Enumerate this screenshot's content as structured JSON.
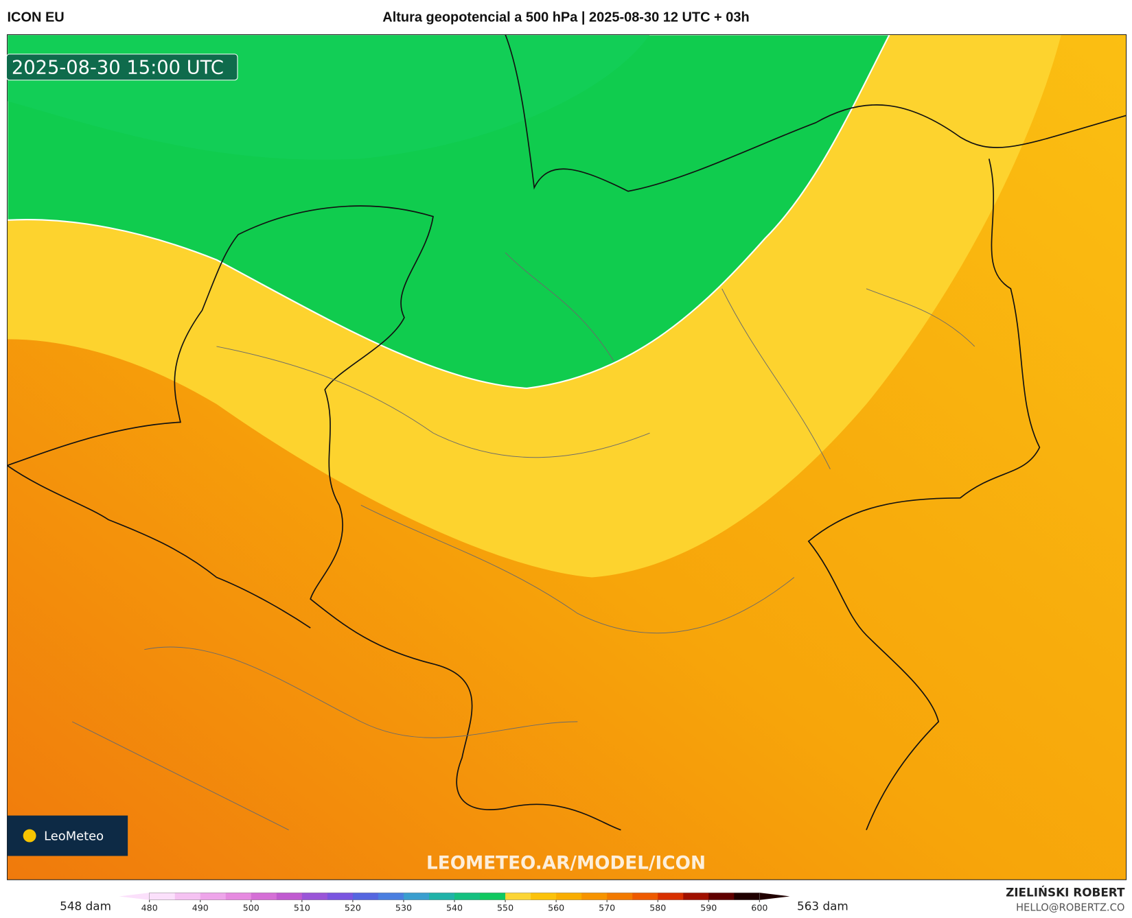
{
  "header": {
    "model": "ICON EU",
    "title": "Altura geopotencial a 500 hPa | 2025-08-30 12 UTC + 03h"
  },
  "map": {
    "valid_time": "2025-08-30 15:00 UTC",
    "watermark": "LEOMETEO.AR/MODEL/ICON",
    "logo": "LeoMeteo"
  },
  "colorbar": {
    "min_label": "548 dam",
    "max_label": "563 dam",
    "ticks": [
      480,
      490,
      500,
      510,
      520,
      530,
      540,
      550,
      560,
      570,
      580,
      590,
      600
    ],
    "colors": [
      "#fbe0fb",
      "#f5c2f2",
      "#eea5ea",
      "#e68ae0",
      "#d56fd6",
      "#c05ad0",
      "#9a55d8",
      "#7a55e0",
      "#5566e0",
      "#4a7ee0",
      "#3a9ecf",
      "#20b2a8",
      "#14c080",
      "#10c860",
      "#fcd535",
      "#fcc20a",
      "#f9ad00",
      "#f79400",
      "#f27a00",
      "#ee5a00",
      "#d83000",
      "#a01000",
      "#600000",
      "#200000"
    ]
  },
  "credit": {
    "name": "ZIELIŃSKI ROBERT",
    "email": "HELLO@ROBERTZ.CO"
  }
}
